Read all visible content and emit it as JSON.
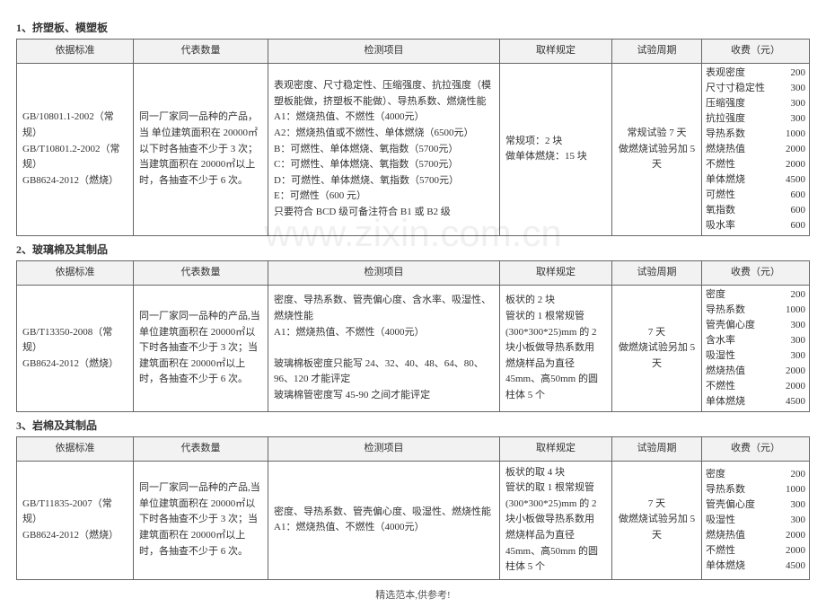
{
  "watermark": "www.zixin.com.cn",
  "footer": "精选范本,供参考!",
  "columns": {
    "std": "依据标准",
    "qty": "代表数量",
    "item": "检测项目",
    "sample": "取样规定",
    "period": "试验周期",
    "fee": "收费（元）"
  },
  "sections": [
    {
      "title": "1、挤塑板、模塑板",
      "std": "GB/10801.1-2002（常规）\nGB/T10801.2-2002（常规）\nGB8624-2012（燃烧）",
      "qty": "同一厂家同一品种的产品，当  单位建筑面积在 20000㎡以下时各抽查不少于 3 次；当建筑面积在 20000㎡以上时，各抽查不少于 6 次。",
      "item": "表观密度、尺寸稳定性、压缩强度、抗拉强度（模塑板能做，挤塑板不能做）、导热系数、燃烧性能\nA1：燃烧热值、不燃性（4000元）\nA2：燃烧热值或不燃性、单体燃烧（6500元）\nB：可燃性、单体燃烧、氧指数（5700元）\nC：可燃性、单体燃烧、氧指数（5700元）\nD：可燃性、单体燃烧、氧指数（5700元）\nE：可燃性（600 元）\n只要符合 BCD 级可备注符合 B1 或 B2 级",
      "sample": "常规项：2 块\n做单体燃烧：15 块",
      "period": "常规试验 7 天\n做燃烧试验另加 5 天",
      "fees": [
        [
          "表观密度",
          "200"
        ],
        [
          "尺寸寸稳定性",
          "300"
        ],
        [
          "压缩强度",
          "300"
        ],
        [
          "抗拉强度",
          "300"
        ],
        [
          "导热系数",
          "1000"
        ],
        [
          "燃烧热值",
          "2000"
        ],
        [
          "不燃性",
          "2000"
        ],
        [
          "单体燃烧",
          "4500"
        ],
        [
          "可燃性",
          "600"
        ],
        [
          "氧指数",
          "600"
        ],
        [
          "吸水率",
          "600"
        ]
      ]
    },
    {
      "title": "2、玻璃棉及其制品",
      "std": "GB/T13350-2008（常规）\nGB8624-2012（燃烧）",
      "qty": "同一厂家同一品种的产品,当单位建筑面积在 20000㎡以下时各抽查不少于 3 次；当建筑面积在 20000㎡以上时，各抽查不少于 6 次。",
      "item": "密度、导热系数、管壳偏心度、含水率、吸湿性、燃烧性能\nA1：燃烧热值、不燃性（4000元）\n\n玻璃棉板密度只能写 24、32、40、48、64、80、96、120 才能评定\n玻璃棉管密度写 45-90 之间才能评定",
      "sample": "板状的 2 块\n管状的 1 根常规管(300*300*25)mm 的 2 块小板做导热系数用\n燃烧样品为直径 45mm、高50mm 的圆柱体 5 个",
      "period": "7 天\n做燃烧试验另加 5 天",
      "fees": [
        [
          "密度",
          "200"
        ],
        [
          "导热系数",
          "1000"
        ],
        [
          "管壳偏心度",
          "300"
        ],
        [
          "含水率",
          "300"
        ],
        [
          "吸湿性",
          "300"
        ],
        [
          "燃烧热值",
          "2000"
        ],
        [
          "不燃性",
          "2000"
        ],
        [
          "单体燃烧",
          "4500"
        ]
      ]
    },
    {
      "title": "3、岩棉及其制品",
      "std": "GB/T11835-2007（常规）\nGB8624-2012（燃烧）",
      "qty": "同一厂家同一品种的产品,当单位建筑面积在 20000㎡以下时各抽查不少于 3 次；当建筑面积在 20000㎡以上时，各抽查不少于 6 次。",
      "item": "密度、导热系数、管壳偏心度、吸湿性、燃烧性能\nA1：燃烧热值、不燃性（4000元）",
      "sample": "板状的取 4 块\n管状的取 1 根常规管(300*300*25)mm 的 2 块小板做导热系数用\n燃烧样品为直径 45mm、高50mm 的圆柱体 5 个",
      "period": "7 天\n做燃烧试验另加 5 天",
      "fees": [
        [
          "密度",
          "200"
        ],
        [
          "导热系数",
          "1000"
        ],
        [
          "管壳偏心度",
          "300"
        ],
        [
          "吸湿性",
          "300"
        ],
        [
          "燃烧热值",
          "2000"
        ],
        [
          "不燃性",
          "2000"
        ],
        [
          "单体燃烧",
          "4500"
        ]
      ]
    }
  ]
}
